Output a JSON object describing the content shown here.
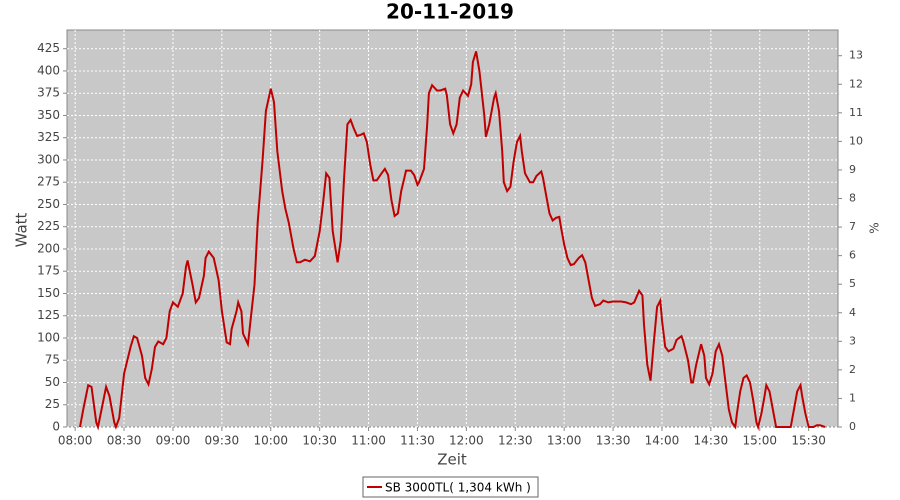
{
  "chart_data": {
    "type": "line",
    "title": "20-11-2019",
    "x_label": "Zeit",
    "y_label": "Watt",
    "y2_label": "%",
    "x": [
      "08:03",
      "08:05",
      "08:08",
      "08:10",
      "08:13",
      "08:14",
      "08:19",
      "08:21",
      "08:24",
      "08:25",
      "08:27",
      "08:30",
      "08:34",
      "08:36",
      "08:38",
      "08:41",
      "08:43",
      "08:45",
      "08:47",
      "08:49",
      "08:51",
      "08:54",
      "08:56",
      "08:58",
      "09:00",
      "09:03",
      "09:06",
      "09:08",
      "09:09",
      "09:12",
      "09:14",
      "09:16",
      "09:19",
      "09:20",
      "09:22",
      "09:25",
      "09:28",
      "09:30",
      "09:33",
      "09:35",
      "09:36",
      "09:39",
      "09:40",
      "09:42",
      "09:43",
      "09:46",
      "09:47",
      "09:50",
      "09:52",
      "09:55",
      "09:57",
      "10:00",
      "10:02",
      "10:04",
      "10:07",
      "10:09",
      "10:11",
      "10:14",
      "10:16",
      "10:18",
      "10:21",
      "10:24",
      "10:27",
      "10:30",
      "10:32",
      "10:34",
      "10:36",
      "10:38",
      "10:41",
      "10:43",
      "10:45",
      "10:47",
      "10:49",
      "10:51",
      "10:53",
      "10:55",
      "10:57",
      "10:59",
      "11:01",
      "11:03",
      "11:05",
      "11:08",
      "11:10",
      "11:12",
      "11:14",
      "11:16",
      "11:18",
      "11:20",
      "11:22",
      "11:23",
      "11:26",
      "11:28",
      "11:30",
      "11:31",
      "11:34",
      "11:36",
      "11:37",
      "11:39",
      "11:42",
      "11:44",
      "11:47",
      "11:48",
      "11:50",
      "11:52",
      "11:54",
      "11:56",
      "11:58",
      "12:01",
      "12:03",
      "12:04",
      "12:06",
      "12:08",
      "12:11",
      "12:12",
      "12:14",
      "12:17",
      "12:18",
      "12:20",
      "12:22",
      "12:23",
      "12:25",
      "12:27",
      "12:29",
      "12:31",
      "12:33",
      "12:34",
      "12:36",
      "12:39",
      "12:41",
      "12:43",
      "12:46",
      "12:47",
      "12:49",
      "12:51",
      "12:53",
      "12:55",
      "12:57",
      "12:58",
      "13:00",
      "13:02",
      "13:04",
      "13:06",
      "13:09",
      "13:11",
      "13:13",
      "13:15",
      "13:17",
      "13:19",
      "13:22",
      "13:24",
      "13:27",
      "13:30",
      "13:35",
      "13:38",
      "13:41",
      "13:43",
      "13:46",
      "13:48",
      "13:49",
      "13:51",
      "13:53",
      "13:55",
      "13:57",
      "13:59",
      "14:00",
      "14:02",
      "14:04",
      "14:07",
      "14:09",
      "14:12",
      "14:13",
      "14:16",
      "14:18",
      "14:19",
      "14:21",
      "14:24",
      "14:26",
      "14:27",
      "14:29",
      "14:31",
      "14:33",
      "14:35",
      "14:37",
      "14:39",
      "14:41",
      "14:43",
      "14:45",
      "14:46",
      "14:48",
      "14:50",
      "14:52",
      "14:54",
      "14:56",
      "14:58",
      "14:59",
      "15:01",
      "15:03",
      "15:04",
      "15:06",
      "15:08",
      "15:10",
      "15:13",
      "15:16",
      "15:19",
      "15:21",
      "15:23",
      "15:25",
      "15:26",
      "15:28",
      "15:30",
      "15:33",
      "15:35",
      "15:37",
      "15:40"
    ],
    "series": [
      {
        "name": "SB 3000TL( 1,304 kWh )",
        "color": "#c00000",
        "values": [
          0,
          20,
          47,
          45,
          5,
          0,
          45,
          35,
          5,
          0,
          10,
          60,
          90,
          102,
          100,
          80,
          55,
          48,
          65,
          90,
          96,
          93,
          100,
          130,
          140,
          135,
          150,
          180,
          187,
          160,
          140,
          145,
          170,
          190,
          197,
          190,
          165,
          130,
          95,
          93,
          110,
          130,
          140,
          130,
          105,
          93,
          110,
          160,
          230,
          300,
          355,
          380,
          365,
          310,
          265,
          245,
          230,
          200,
          185,
          185,
          188,
          186,
          192,
          220,
          250,
          285,
          280,
          220,
          185,
          210,
          280,
          340,
          345,
          335,
          327,
          328,
          330,
          320,
          295,
          277,
          277,
          285,
          290,
          283,
          255,
          237,
          240,
          265,
          280,
          288,
          288,
          283,
          272,
          275,
          290,
          340,
          375,
          384,
          378,
          378,
          380,
          373,
          340,
          330,
          340,
          370,
          378,
          372,
          385,
          410,
          422,
          400,
          350,
          326,
          340,
          370,
          375,
          355,
          310,
          275,
          265,
          270,
          298,
          320,
          327,
          310,
          285,
          275,
          275,
          282,
          287,
          280,
          260,
          240,
          232,
          235,
          236,
          225,
          205,
          190,
          182,
          183,
          190,
          193,
          185,
          165,
          145,
          136,
          138,
          142,
          140,
          141,
          141,
          140,
          138,
          140,
          153,
          148,
          115,
          70,
          52,
          95,
          135,
          142,
          120,
          90,
          85,
          88,
          98,
          102,
          97,
          75,
          50,
          50,
          70,
          93,
          80,
          55,
          48,
          60,
          85,
          93,
          80,
          50,
          20,
          5,
          0,
          15,
          40,
          55,
          58,
          50,
          30,
          5,
          0,
          15,
          35,
          47,
          40,
          20,
          0,
          0,
          0,
          0,
          20,
          40,
          47,
          35,
          15,
          0,
          0,
          2,
          2,
          0
        ]
      }
    ],
    "xlim": [
      "07:55",
      "15:48"
    ],
    "xticks": [
      "08:00",
      "08:30",
      "09:00",
      "09:30",
      "10:00",
      "10:30",
      "11:00",
      "11:30",
      "12:00",
      "12:30",
      "13:00",
      "13:30",
      "14:00",
      "14:30",
      "15:00",
      "15:30"
    ],
    "ylim": [
      0,
      446
    ],
    "yticks": [
      0,
      25,
      50,
      75,
      100,
      125,
      150,
      175,
      200,
      225,
      250,
      275,
      300,
      325,
      350,
      375,
      400,
      425
    ],
    "y2lim": [
      0,
      13.9
    ],
    "y2ticks": [
      0,
      1,
      2,
      3,
      4,
      5,
      6,
      7,
      8,
      9,
      10,
      11,
      12,
      13
    ],
    "grid": true,
    "legend": "bottom"
  }
}
